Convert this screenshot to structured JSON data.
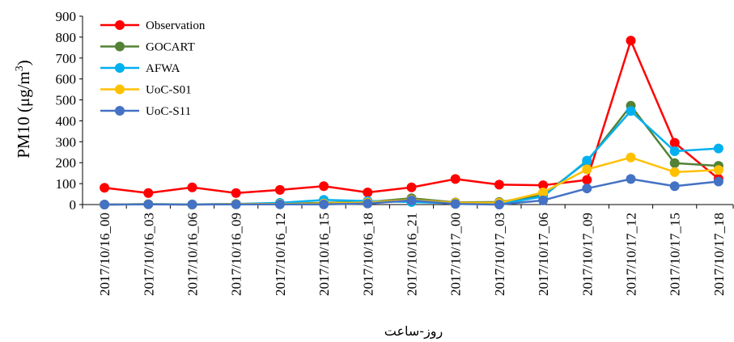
{
  "chart_data": {
    "type": "line",
    "xlabel": "روز-ساعت",
    "ylabel_main": "PM10 (μg/m",
    "ylabel_sup": "3",
    "ylabel_close": ")",
    "ylim": [
      0,
      900
    ],
    "yticks": [
      0,
      100,
      200,
      300,
      400,
      500,
      600,
      700,
      800,
      900
    ],
    "categories": [
      "2017/10/16_00",
      "2017/10/16_03",
      "2017/10/16_06",
      "2017/10/16_09",
      "2017/10/16_12",
      "2017/10/16_15",
      "2017/10/16_18",
      "2017/10/16_21",
      "2017/10/17_00",
      "2017/10/17_03",
      "2017/10/17_06",
      "2017/10/17_09",
      "2017/10/17_12",
      "2017/10/17_15",
      "2017/10/17_18"
    ],
    "legend_position": "top-left",
    "grid": false,
    "series": [
      {
        "name": "Observation",
        "color": "#ff0000",
        "values": [
          80,
          55,
          82,
          55,
          70,
          88,
          58,
          82,
          122,
          95,
          92,
          118,
          783,
          295,
          123
        ]
      },
      {
        "name": "GOCART",
        "color": "#548235",
        "values": [
          0,
          2,
          0,
          3,
          4,
          8,
          12,
          30,
          10,
          12,
          45,
          205,
          472,
          198,
          185
        ]
      },
      {
        "name": "AFWA",
        "color": "#00b0f0",
        "values": [
          0,
          2,
          1,
          3,
          8,
          22,
          17,
          12,
          6,
          3,
          38,
          210,
          447,
          255,
          268
        ]
      },
      {
        "name": "UoC-S01",
        "color": "#ffc000",
        "values": [
          0,
          2,
          0,
          3,
          3,
          5,
          10,
          22,
          8,
          8,
          58,
          168,
          225,
          155,
          165
        ]
      },
      {
        "name": "UoC-S11",
        "color": "#4472c4",
        "values": [
          0,
          1,
          0,
          1,
          1,
          1,
          5,
          20,
          3,
          0,
          20,
          77,
          122,
          88,
          110
        ]
      }
    ]
  }
}
